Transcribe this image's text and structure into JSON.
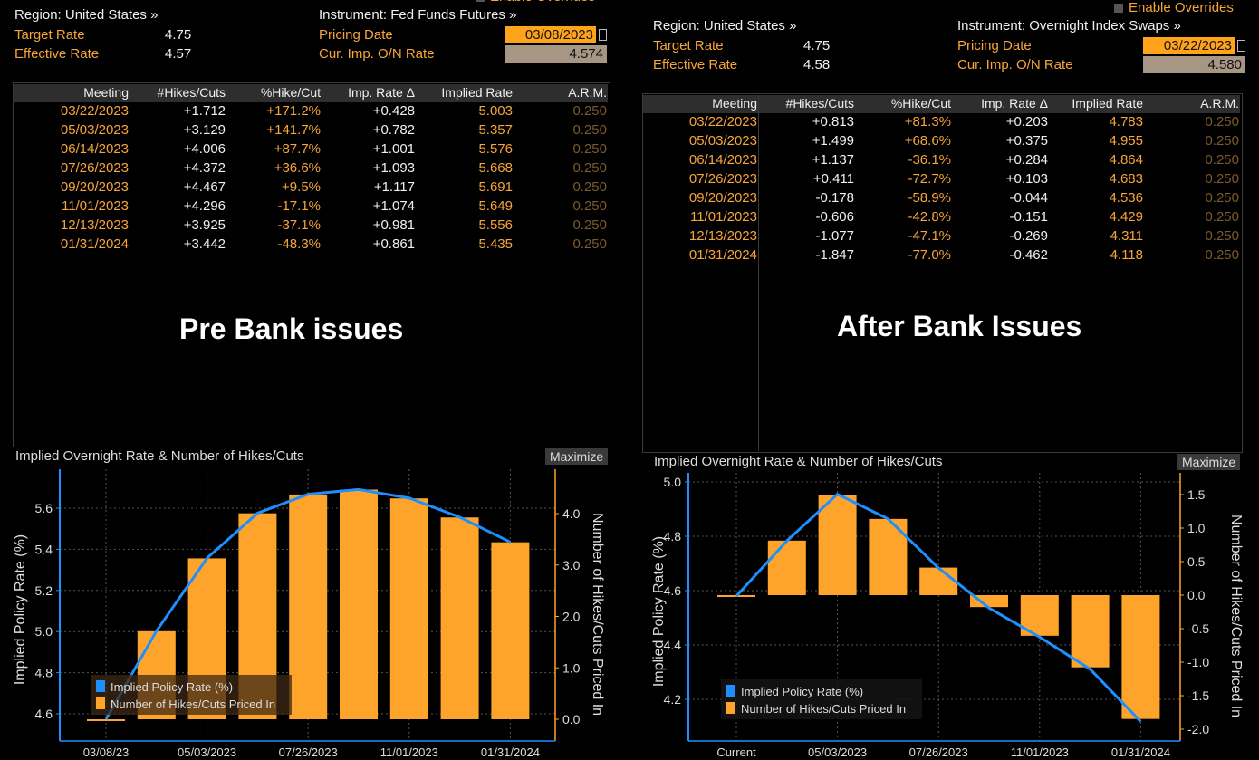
{
  "panels": [
    {
      "enable_overrides": "Enable Overrides",
      "region": "Region: United States »",
      "instrument": "Instrument: Fed Funds Futures »",
      "target_rate_label": "Target Rate",
      "target_rate": "4.75",
      "effective_rate_label": "Effective Rate",
      "effective_rate": "4.57",
      "pricing_date_label": "Pricing Date",
      "pricing_date": "03/08/2023",
      "cur_imp_label": "Cur. Imp. O/N Rate",
      "cur_imp": "4.574",
      "columns": [
        "Meeting",
        "#Hikes/Cuts",
        "%Hike/Cut",
        "Imp. Rate Δ",
        "Implied Rate",
        "A.R.M."
      ],
      "rows": [
        [
          "03/22/2023",
          "+1.712",
          "+171.2%",
          "+0.428",
          "5.003",
          "0.250"
        ],
        [
          "05/03/2023",
          "+3.129",
          "+141.7%",
          "+0.782",
          "5.357",
          "0.250"
        ],
        [
          "06/14/2023",
          "+4.006",
          "+87.7%",
          "+1.001",
          "5.576",
          "0.250"
        ],
        [
          "07/26/2023",
          "+4.372",
          "+36.6%",
          "+1.093",
          "5.668",
          "0.250"
        ],
        [
          "09/20/2023",
          "+4.467",
          "+9.5%",
          "+1.117",
          "5.691",
          "0.250"
        ],
        [
          "11/01/2023",
          "+4.296",
          "-17.1%",
          "+1.074",
          "5.649",
          "0.250"
        ],
        [
          "12/13/2023",
          "+3.925",
          "-37.1%",
          "+0.981",
          "5.556",
          "0.250"
        ],
        [
          "01/31/2024",
          "+3.442",
          "-48.3%",
          "+0.861",
          "5.435",
          "0.250"
        ]
      ],
      "overlay_text": "Pre Bank issues",
      "chart_title": "Implied Overnight Rate & Number of Hikes/Cuts",
      "maximize": "Maximize"
    },
    {
      "enable_overrides": "Enable Overrides",
      "region": "Region: United States »",
      "instrument": "Instrument: Overnight Index Swaps »",
      "target_rate_label": "Target Rate",
      "target_rate": "4.75",
      "effective_rate_label": "Effective Rate",
      "effective_rate": "4.58",
      "pricing_date_label": "Pricing Date",
      "pricing_date": "03/22/2023",
      "cur_imp_label": "Cur. Imp. O/N Rate",
      "cur_imp": "4.580",
      "columns": [
        "Meeting",
        "#Hikes/Cuts",
        "%Hike/Cut",
        "Imp. Rate Δ",
        "Implied Rate",
        "A.R.M."
      ],
      "rows": [
        [
          "03/22/2023",
          "+0.813",
          "+81.3%",
          "+0.203",
          "4.783",
          "0.250"
        ],
        [
          "05/03/2023",
          "+1.499",
          "+68.6%",
          "+0.375",
          "4.955",
          "0.250"
        ],
        [
          "06/14/2023",
          "+1.137",
          "-36.1%",
          "+0.284",
          "4.864",
          "0.250"
        ],
        [
          "07/26/2023",
          "+0.411",
          "-72.7%",
          "+0.103",
          "4.683",
          "0.250"
        ],
        [
          "09/20/2023",
          "-0.178",
          "-58.9%",
          "-0.044",
          "4.536",
          "0.250"
        ],
        [
          "11/01/2023",
          "-0.606",
          "-42.8%",
          "-0.151",
          "4.429",
          "0.250"
        ],
        [
          "12/13/2023",
          "-1.077",
          "-47.1%",
          "-0.269",
          "4.311",
          "0.250"
        ],
        [
          "01/31/2024",
          "-1.847",
          "-77.0%",
          "-0.462",
          "4.118",
          "0.250"
        ]
      ],
      "overlay_text": "After Bank Issues",
      "chart_title": "Implied Overnight Rate & Number of Hikes/Cuts",
      "maximize": "Maximize"
    }
  ],
  "chart_data": [
    {
      "type": "bar+line",
      "title": "Implied Overnight Rate & Number of Hikes/Cuts",
      "ylabel": "Implied Policy Rate (%)",
      "y2label": "Number of Hikes/Cuts Priced In",
      "categories": [
        "03/08/23",
        "03/22/2023",
        "05/03/2023",
        "06/14/2023",
        "07/26/2023",
        "09/20/2023",
        "11/01/2023",
        "12/13/2023",
        "01/31/2024"
      ],
      "x_tick_labels": [
        "03/08/23",
        "05/03/2023",
        "07/26/2023",
        "11/01/2023",
        "01/31/2024"
      ],
      "y_ticks": [
        "4.6",
        "4.8",
        "5.0",
        "5.2",
        "5.4",
        "5.6"
      ],
      "y2_ticks": [
        "0.0",
        "1.0",
        "2.0",
        "3.0",
        "4.0"
      ],
      "ylim": [
        4.5,
        5.75
      ],
      "y2lim": [
        -0.3,
        4.9
      ],
      "series": [
        {
          "name": "Implied Policy Rate (%)",
          "type": "line",
          "axis": "left",
          "color": "#1e8fff",
          "values": [
            4.574,
            5.003,
            5.357,
            5.576,
            5.668,
            5.691,
            5.649,
            5.556,
            5.435
          ]
        },
        {
          "name": "Number of Hikes/Cuts Priced In",
          "type": "bar",
          "axis": "right",
          "color": "#ffa42b",
          "values": [
            0,
            1.712,
            3.129,
            4.006,
            4.372,
            4.467,
            4.296,
            3.925,
            3.442
          ]
        }
      ],
      "grid": true,
      "legend_position": "bottom-left"
    },
    {
      "type": "bar+line",
      "title": "Implied Overnight Rate & Number of Hikes/Cuts",
      "ylabel": "Implied Policy Rate (%)",
      "y2label": "Number of Hikes/Cuts Priced In",
      "categories": [
        "Current",
        "03/22/2023",
        "05/03/2023",
        "06/14/2023",
        "07/26/2023",
        "09/20/2023",
        "11/01/2023",
        "12/13/2023",
        "01/31/2024"
      ],
      "x_tick_labels": [
        "Current",
        "05/03/2023",
        "07/26/2023",
        "11/01/2023",
        "01/31/2024"
      ],
      "y_ticks": [
        "4.2",
        "4.4",
        "4.6",
        "4.8",
        "5.0"
      ],
      "y2_ticks": [
        "-2.0",
        "-1.5",
        "-1.0",
        "-0.5",
        "0.0",
        "0.5",
        "1.0",
        "1.5"
      ],
      "ylim": [
        4.08,
        5.03
      ],
      "y2lim": [
        -2.2,
        1.8
      ],
      "series": [
        {
          "name": "Implied Policy Rate (%)",
          "type": "line",
          "axis": "left",
          "color": "#1e8fff",
          "values": [
            4.58,
            4.783,
            4.955,
            4.864,
            4.683,
            4.536,
            4.429,
            4.311,
            4.118
          ]
        },
        {
          "name": "Number of Hikes/Cuts Priced In",
          "type": "bar",
          "axis": "right",
          "color": "#ffa42b",
          "values": [
            0,
            0.813,
            1.499,
            1.137,
            0.411,
            -0.178,
            -0.606,
            -1.077,
            -1.847
          ]
        }
      ],
      "grid": true,
      "legend_position": "bottom-left"
    }
  ]
}
